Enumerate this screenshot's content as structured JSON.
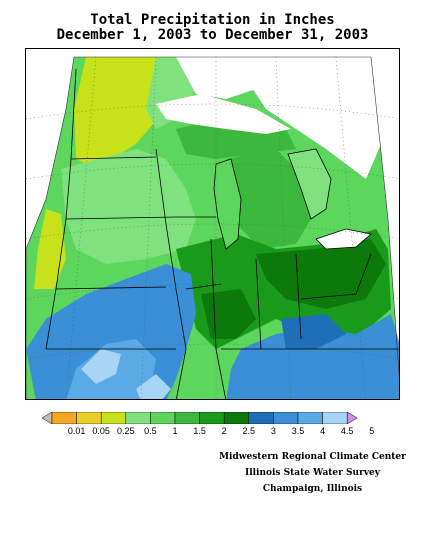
{
  "header": {
    "title_line1": "Total Precipitation in Inches",
    "title_line2": "December 1, 2003 to December 31, 2003"
  },
  "legend": {
    "labels": [
      "0.01",
      "0.05",
      "0.25",
      "0.5",
      "1",
      "1.5",
      "2",
      "2.5",
      "3",
      "3.5",
      "4",
      "4.5",
      "5"
    ],
    "colors": [
      "#bcbcbc",
      "#f5a623",
      "#e8d028",
      "#c7e11b",
      "#7fe27f",
      "#5cd65c",
      "#3cb83c",
      "#1a9a1a",
      "#0b7a0b",
      "#1f6fb8",
      "#3a8fd6",
      "#5aaae6",
      "#a8d4f5",
      "#d48ee6"
    ]
  },
  "credits": {
    "line1": "Midwestern Regional Climate Center",
    "line2": "Illinois State Water Survey",
    "line3": "Champaign, Illinois"
  },
  "map_colors": {
    "water": "#ffffff",
    "yellow_green": "#c7e11b",
    "light_green": "#7fe27f",
    "green": "#5cd65c",
    "medium_green": "#3cb83c",
    "dark_green": "#1a9a1a",
    "darkest_green": "#0b7a0b",
    "blue_dark": "#1f6fb8",
    "blue": "#3a8fd6",
    "blue_light": "#5aaae6",
    "blue_pale": "#a8d4f5"
  }
}
